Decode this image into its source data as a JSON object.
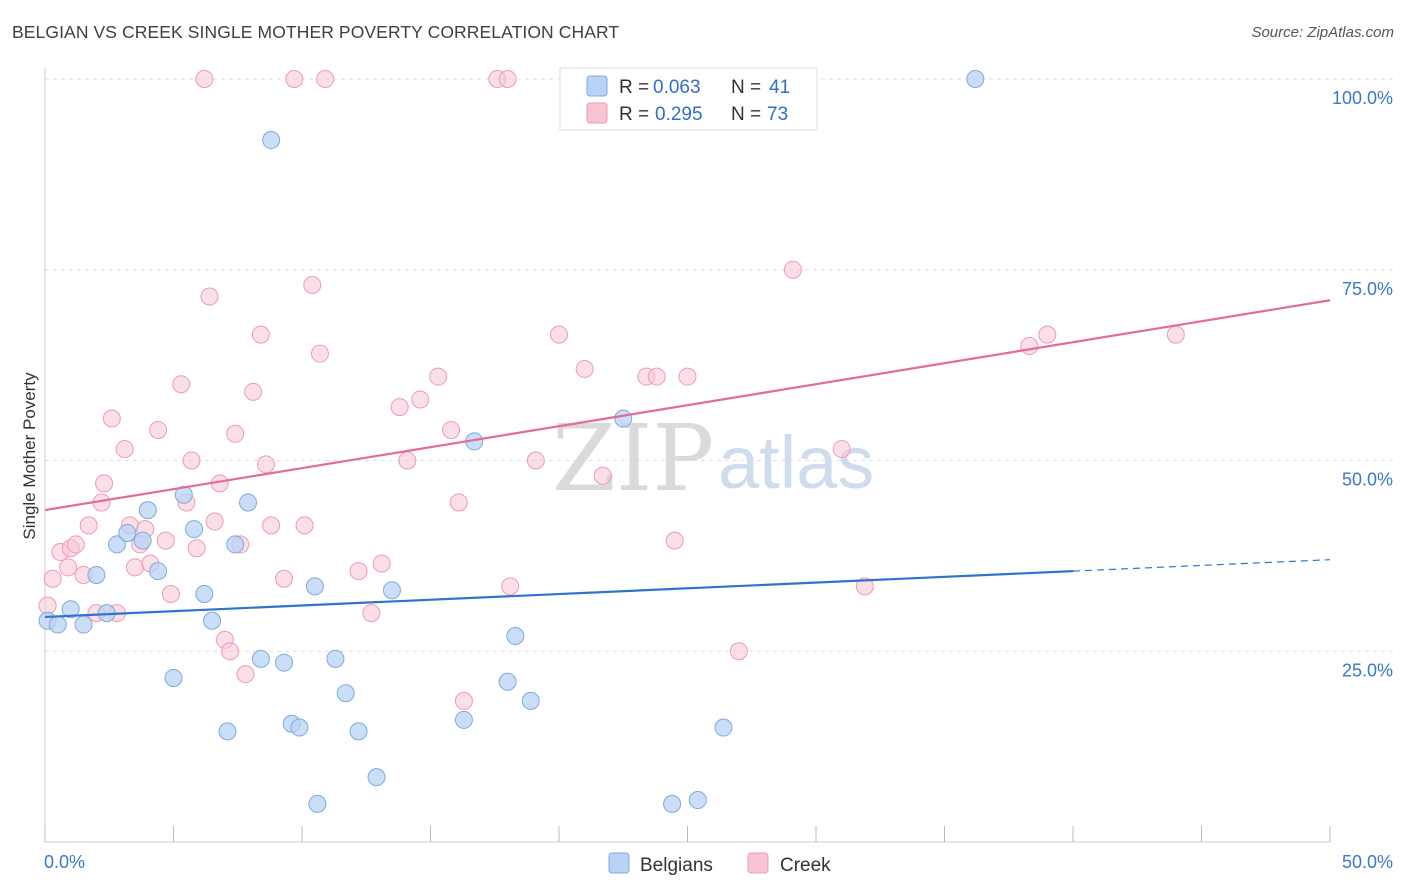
{
  "header": {
    "title": "BELGIAN VS CREEK SINGLE MOTHER POVERTY CORRELATION CHART",
    "source": "Source: ZipAtlas.com"
  },
  "watermark": {
    "zip": "ZIP",
    "atlas": "atlas"
  },
  "legend": {
    "belgians": {
      "r_label": "R =",
      "r_value": "0.063",
      "n_label": "N =",
      "n_value": "41"
    },
    "creek": {
      "r_label": "R =",
      "r_value": "0.295",
      "n_label": "N =",
      "n_value": "73"
    }
  },
  "bottom_legend": {
    "belgians": "Belgians",
    "creek": "Creek"
  },
  "colors": {
    "belgians_fill": "#b8d3f4",
    "belgians_stroke": "#7ea9df",
    "belgians_line": "#2f74cc",
    "creek_fill": "#f8c4d3",
    "creek_stroke": "#ef9ab3",
    "creek_line": "#e46b93",
    "tick": "#3a78c9",
    "grid": "#dddddd"
  },
  "chart_data": {
    "type": "scatter",
    "title": "BELGIAN VS CREEK SINGLE MOTHER POVERTY CORRELATION CHART",
    "xlabel": "",
    "ylabel": "Single Mother Poverty",
    "xlim": [
      0,
      50
    ],
    "ylim": [
      0,
      100
    ],
    "x_tick_labels": [
      "0.0%",
      "50.0%"
    ],
    "y_ticks": [
      25,
      50,
      75,
      100
    ],
    "y_tick_labels": [
      "25.0%",
      "50.0%",
      "75.0%",
      "100.0%"
    ],
    "series": [
      {
        "name": "Belgians",
        "r": 0.063,
        "n": 41,
        "trend": {
          "x0": 0,
          "y0": 29.5,
          "x1": 40,
          "y1": 35.5,
          "dash_x1": 50,
          "dash_y1": 37.0
        },
        "points": [
          [
            0.1,
            29.0
          ],
          [
            0.5,
            28.5
          ],
          [
            1.0,
            30.5
          ],
          [
            1.5,
            28.5
          ],
          [
            2.0,
            35.0
          ],
          [
            2.4,
            30.0
          ],
          [
            2.8,
            39.0
          ],
          [
            3.2,
            40.5
          ],
          [
            3.8,
            39.5
          ],
          [
            4.0,
            43.5
          ],
          [
            4.4,
            35.5
          ],
          [
            5.0,
            21.5
          ],
          [
            5.4,
            45.5
          ],
          [
            5.8,
            41.0
          ],
          [
            6.2,
            32.5
          ],
          [
            6.5,
            29.0
          ],
          [
            7.1,
            14.5
          ],
          [
            7.4,
            39.0
          ],
          [
            7.9,
            44.5
          ],
          [
            8.4,
            24.0
          ],
          [
            8.8,
            92.0
          ],
          [
            9.3,
            23.5
          ],
          [
            9.6,
            15.5
          ],
          [
            9.9,
            15.0
          ],
          [
            10.5,
            33.5
          ],
          [
            10.6,
            5.0
          ],
          [
            11.3,
            24.0
          ],
          [
            11.7,
            19.5
          ],
          [
            12.2,
            14.5
          ],
          [
            12.9,
            8.5
          ],
          [
            13.5,
            33.0
          ],
          [
            16.3,
            16.0
          ],
          [
            16.7,
            52.5
          ],
          [
            18.0,
            21.0
          ],
          [
            18.3,
            27.0
          ],
          [
            18.9,
            18.5
          ],
          [
            22.5,
            55.5
          ],
          [
            24.4,
            5.0
          ],
          [
            25.4,
            5.5
          ],
          [
            26.4,
            15.0
          ],
          [
            36.2,
            100.0
          ]
        ]
      },
      {
        "name": "Creek",
        "r": 0.295,
        "n": 73,
        "trend": {
          "x0": 0,
          "y0": 43.5,
          "x1": 50,
          "y1": 71.0
        },
        "points": [
          [
            0.1,
            31.0
          ],
          [
            0.3,
            34.5
          ],
          [
            0.6,
            38.0
          ],
          [
            0.9,
            36.0
          ],
          [
            1.0,
            38.5
          ],
          [
            1.2,
            39.0
          ],
          [
            1.5,
            35.0
          ],
          [
            1.7,
            41.5
          ],
          [
            2.0,
            30.0
          ],
          [
            2.2,
            44.5
          ],
          [
            2.3,
            47.0
          ],
          [
            2.6,
            55.5
          ],
          [
            2.8,
            30.0
          ],
          [
            3.1,
            51.5
          ],
          [
            3.3,
            41.5
          ],
          [
            3.5,
            36.0
          ],
          [
            3.7,
            39.0
          ],
          [
            3.9,
            41.0
          ],
          [
            4.1,
            36.5
          ],
          [
            4.4,
            54.0
          ],
          [
            4.7,
            39.5
          ],
          [
            4.9,
            32.5
          ],
          [
            5.3,
            60.0
          ],
          [
            5.5,
            44.5
          ],
          [
            5.7,
            50.0
          ],
          [
            5.9,
            38.5
          ],
          [
            6.2,
            100.0
          ],
          [
            6.4,
            71.5
          ],
          [
            6.6,
            42.0
          ],
          [
            6.8,
            47.0
          ],
          [
            7.0,
            26.5
          ],
          [
            7.2,
            25.0
          ],
          [
            7.4,
            53.5
          ],
          [
            7.6,
            39.0
          ],
          [
            7.8,
            22.0
          ],
          [
            8.1,
            59.0
          ],
          [
            8.4,
            66.5
          ],
          [
            8.6,
            49.5
          ],
          [
            8.8,
            41.5
          ],
          [
            9.3,
            34.5
          ],
          [
            9.7,
            100.0
          ],
          [
            10.1,
            41.5
          ],
          [
            10.4,
            73.0
          ],
          [
            10.7,
            64.0
          ],
          [
            10.9,
            100.0
          ],
          [
            12.2,
            35.5
          ],
          [
            12.7,
            30.0
          ],
          [
            13.1,
            36.5
          ],
          [
            13.8,
            57.0
          ],
          [
            14.1,
            50.0
          ],
          [
            14.6,
            58.0
          ],
          [
            15.3,
            61.0
          ],
          [
            15.8,
            54.0
          ],
          [
            16.1,
            44.5
          ],
          [
            16.3,
            18.5
          ],
          [
            17.6,
            100.0
          ],
          [
            18.0,
            100.0
          ],
          [
            18.1,
            33.5
          ],
          [
            19.1,
            50.0
          ],
          [
            20.0,
            66.5
          ],
          [
            21.0,
            62.0
          ],
          [
            21.7,
            48.0
          ],
          [
            23.4,
            61.0
          ],
          [
            23.8,
            61.0
          ],
          [
            24.5,
            39.5
          ],
          [
            25.0,
            61.0
          ],
          [
            27.0,
            25.0
          ],
          [
            29.1,
            75.0
          ],
          [
            31.0,
            51.5
          ],
          [
            31.9,
            33.5
          ],
          [
            38.3,
            65.0
          ],
          [
            39.0,
            66.5
          ],
          [
            44.0,
            66.5
          ]
        ]
      }
    ]
  }
}
